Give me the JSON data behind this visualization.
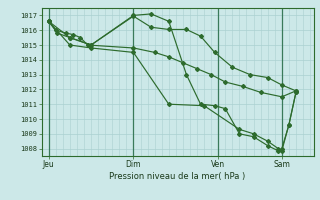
{
  "title": "Pression niveau de la mer( hPa )",
  "bg_color": "#cce8e8",
  "grid_color": "#aad0d0",
  "line_color": "#2d6b2d",
  "ylim": [
    1007.5,
    1017.5
  ],
  "yticks": [
    1008,
    1009,
    1010,
    1011,
    1012,
    1013,
    1014,
    1015,
    1016,
    1017
  ],
  "xtick_labels": [
    "Jeu",
    "Dim",
    "Ven",
    "Sam"
  ],
  "xtick_positions": [
    0,
    96,
    192,
    264
  ],
  "xlim": [
    -8,
    300
  ],
  "major_vline_x": [
    0,
    96,
    192,
    264
  ],
  "series1_x": [
    0,
    8,
    20,
    28,
    36,
    44,
    96,
    120,
    136,
    152,
    168,
    184,
    200,
    220,
    240,
    264,
    280
  ],
  "series1_y": [
    1016.6,
    1016.0,
    1015.8,
    1015.7,
    1015.5,
    1015.0,
    1014.8,
    1014.5,
    1014.2,
    1013.8,
    1013.4,
    1013.0,
    1012.5,
    1012.2,
    1011.8,
    1011.5,
    1011.9
  ],
  "series2_x": [
    0,
    10,
    24,
    48,
    96,
    116,
    136,
    156,
    172,
    188,
    208,
    228,
    248,
    264,
    280
  ],
  "series2_y": [
    1016.6,
    1015.8,
    1015.5,
    1015.0,
    1016.95,
    1016.2,
    1016.05,
    1016.05,
    1015.6,
    1014.5,
    1013.5,
    1013.0,
    1012.8,
    1012.3,
    1011.9
  ],
  "series3_x": [
    0,
    24,
    48,
    96,
    116,
    136,
    156,
    172,
    188,
    200,
    216,
    232,
    248,
    260,
    264,
    272,
    280
  ],
  "series3_y": [
    1016.6,
    1015.5,
    1015.0,
    1017.0,
    1017.1,
    1016.6,
    1013.0,
    1011.0,
    1010.9,
    1010.7,
    1009.0,
    1008.8,
    1008.2,
    1007.85,
    1008.0,
    1009.6,
    1011.8
  ],
  "series4_x": [
    0,
    24,
    48,
    96,
    136,
    176,
    216,
    232,
    248,
    260,
    264,
    272,
    280
  ],
  "series4_y": [
    1016.6,
    1015.0,
    1014.8,
    1014.5,
    1011.0,
    1010.9,
    1009.3,
    1009.0,
    1008.5,
    1008.0,
    1007.85,
    1009.6,
    1011.8
  ]
}
